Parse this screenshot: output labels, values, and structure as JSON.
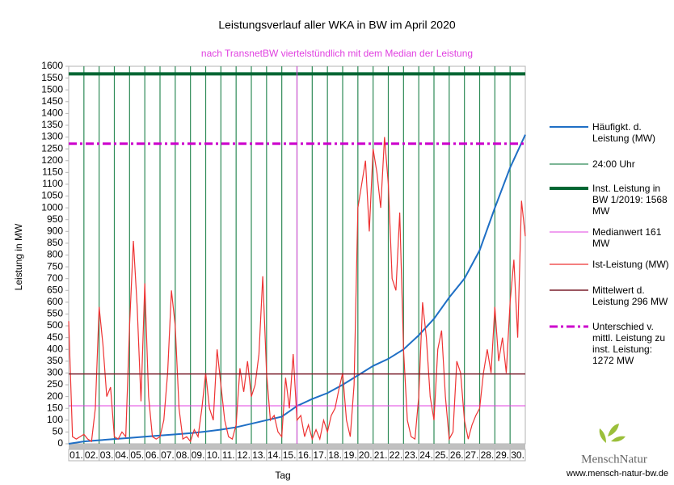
{
  "chart_data": {
    "type": "line",
    "title": "Leistungsverlauf aller WKA in BW im April 2020",
    "subtitle": "nach TransnetBW viertelstündlich mit dem Median der Leistung",
    "y_label": "Leistung in MW",
    "x_label": "Tag",
    "logo_text": "MenschNatur",
    "source": "www.mensch-natur-bw.de",
    "categories": [
      "01.",
      "02.",
      "03.",
      "04.",
      "05.",
      "06.",
      "07.",
      "08.",
      "09.",
      "10.",
      "11.",
      "12.",
      "13.",
      "14.",
      "15.",
      "16.",
      "17.",
      "18.",
      "19.",
      "20.",
      "21.",
      "22.",
      "23.",
      "24.",
      "25.",
      "26.",
      "27.",
      "28.",
      "29.",
      "30."
    ],
    "xlim": [
      0,
      30
    ],
    "ylim": [
      0,
      1600
    ],
    "yticks": [
      0,
      50,
      100,
      150,
      200,
      250,
      300,
      350,
      400,
      450,
      500,
      550,
      600,
      650,
      700,
      750,
      800,
      850,
      900,
      950,
      1000,
      1050,
      1100,
      1150,
      1200,
      1250,
      1300,
      1350,
      1400,
      1450,
      1500,
      1550,
      1600
    ],
    "series": [
      {
        "name": "Häufigkt. d. Leistung (MW)",
        "kind": "line",
        "color": "#1f6fc5",
        "x": [
          0,
          1,
          2,
          3,
          4,
          5,
          6,
          7,
          8,
          9,
          10,
          11,
          12,
          13,
          14,
          15,
          16,
          17,
          18,
          19,
          20,
          21,
          22,
          23,
          24,
          25,
          26,
          27,
          28,
          29,
          30
        ],
        "values": [
          0,
          10,
          15,
          20,
          25,
          30,
          35,
          40,
          45,
          52,
          60,
          70,
          85,
          100,
          115,
          160,
          190,
          215,
          250,
          290,
          330,
          360,
          400,
          460,
          530,
          620,
          700,
          820,
          1000,
          1170,
          1310
        ]
      },
      {
        "name": "24:00 Uhr",
        "kind": "day-lines",
        "color": "#2e8b57"
      },
      {
        "name": "Inst. Leistung in BW 1/2019: 1568 MW",
        "kind": "hline",
        "color": "#006633",
        "value": 1568,
        "line_width": 4,
        "dash": false
      },
      {
        "name": "Medianwert 161 MW",
        "kind": "hline",
        "color": "#e040e0",
        "value": 161,
        "line_width": 1,
        "dash": false,
        "x": 15
      },
      {
        "name": "Ist-Leistung (MW)",
        "kind": "line",
        "color": "#ee3333",
        "x": [
          0,
          0.25,
          0.5,
          0.75,
          1,
          1.25,
          1.5,
          1.75,
          2,
          2.25,
          2.5,
          2.75,
          3,
          3.25,
          3.5,
          3.75,
          4,
          4.25,
          4.5,
          4.75,
          5,
          5.25,
          5.5,
          5.75,
          6,
          6.25,
          6.5,
          6.75,
          7,
          7.25,
          7.5,
          7.75,
          8,
          8.25,
          8.5,
          8.75,
          9,
          9.25,
          9.5,
          9.75,
          10,
          10.25,
          10.5,
          10.75,
          11,
          11.25,
          11.5,
          11.75,
          12,
          12.25,
          12.5,
          12.75,
          13,
          13.25,
          13.5,
          13.75,
          14,
          14.25,
          14.5,
          14.75,
          15,
          15.25,
          15.5,
          15.75,
          16,
          16.25,
          16.5,
          16.75,
          17,
          17.25,
          17.5,
          17.75,
          18,
          18.25,
          18.5,
          18.75,
          19,
          19.25,
          19.5,
          19.75,
          20,
          20.25,
          20.5,
          20.75,
          21,
          21.25,
          21.5,
          21.75,
          22,
          22.25,
          22.5,
          22.75,
          23,
          23.25,
          23.5,
          23.75,
          24,
          24.25,
          24.5,
          24.75,
          25,
          25.25,
          25.5,
          25.75,
          26,
          26.25,
          26.5,
          26.75,
          27,
          27.25,
          27.5,
          27.75,
          28,
          28.25,
          28.5,
          28.75,
          29,
          29.25,
          29.5,
          29.75,
          30
        ],
        "values": [
          520,
          30,
          20,
          30,
          40,
          20,
          10,
          150,
          580,
          420,
          200,
          240,
          30,
          20,
          50,
          30,
          500,
          860,
          580,
          180,
          680,
          200,
          30,
          20,
          30,
          100,
          300,
          650,
          500,
          150,
          20,
          30,
          10,
          60,
          30,
          150,
          300,
          150,
          100,
          400,
          250,
          100,
          30,
          20,
          80,
          320,
          220,
          350,
          200,
          250,
          380,
          710,
          300,
          100,
          120,
          50,
          30,
          280,
          150,
          380,
          100,
          120,
          30,
          80,
          20,
          60,
          20,
          100,
          50,
          120,
          150,
          230,
          300,
          100,
          30,
          250,
          1000,
          1100,
          1200,
          900,
          1250,
          1150,
          1000,
          1300,
          1100,
          700,
          650,
          980,
          400,
          100,
          30,
          20,
          200,
          600,
          450,
          200,
          100,
          400,
          480,
          200,
          20,
          50,
          350,
          300,
          100,
          20,
          80,
          120,
          150,
          300,
          400,
          300,
          580,
          350,
          450,
          300,
          600,
          780,
          450,
          1030,
          880
        ]
      },
      {
        "name": "Mittelwert d. Leistung 296 MW",
        "kind": "hline",
        "color": "#7a1f2b",
        "value": 296,
        "line_width": 1.5,
        "dash": false
      },
      {
        "name": "Unterschied v. mittl. Leistung zu inst. Leistung: 1272 MW",
        "kind": "hline",
        "color": "#cc00cc",
        "value": 1272,
        "line_width": 3,
        "dash": true
      }
    ]
  }
}
